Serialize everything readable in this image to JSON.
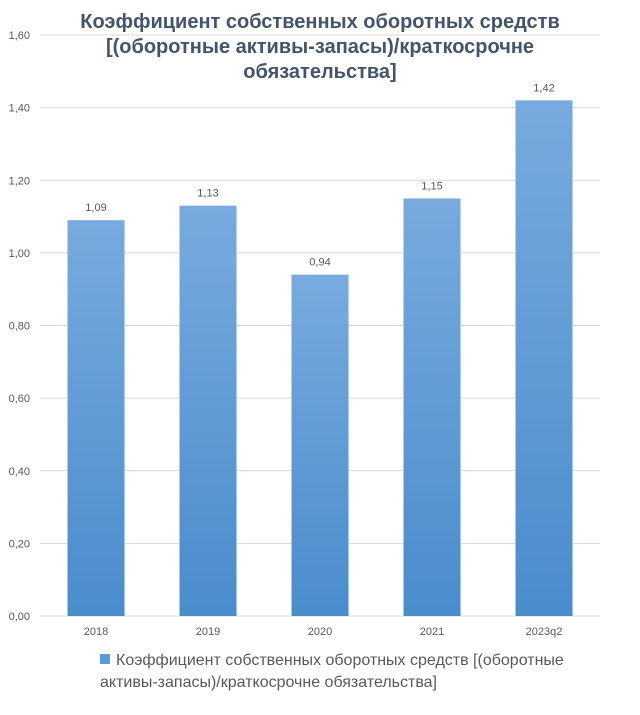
{
  "chart_data": {
    "type": "bar",
    "title": "Коэффициент собственных оборотных средств [(оборотные активы-запасы)/краткосрочне обязательства]",
    "categories": [
      "2018",
      "2019",
      "2020",
      "2021",
      "2023q2"
    ],
    "series": [
      {
        "name": "Коэффициент собственных оборотных средств [(оборотные активы-запасы)/краткосрочне обязательства]",
        "values": [
          1.09,
          1.13,
          0.94,
          1.15,
          1.42
        ],
        "data_labels": [
          "1,09",
          "1,13",
          "0,94",
          "1,15",
          "1,42"
        ],
        "color": "#5b9bd5"
      }
    ],
    "ylim": [
      0,
      1.6
    ],
    "yticks": [
      0,
      0.2,
      0.4,
      0.6,
      0.8,
      1.0,
      1.2,
      1.4,
      1.6
    ],
    "ytick_labels": [
      "0,00",
      "0,20",
      "0,40",
      "0,60",
      "0,80",
      "1,00",
      "1,20",
      "1,40",
      "1,60"
    ],
    "xlabel": "",
    "ylabel": "",
    "grid": true,
    "legend_position": "bottom"
  },
  "colors": {
    "bar_top": "#78aade",
    "bar_bottom": "#4a8ccc",
    "grid": "#d9d9d9",
    "axis_text": "#595959",
    "title_text": "#44546a"
  }
}
